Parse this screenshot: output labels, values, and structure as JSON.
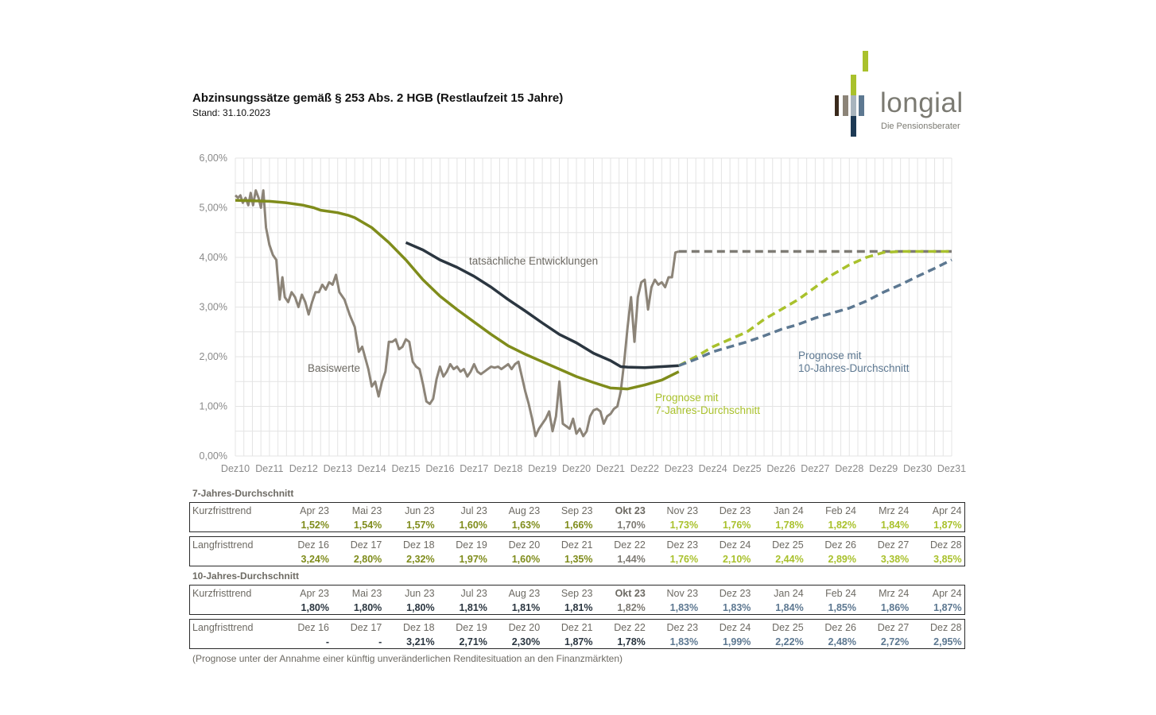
{
  "header": {
    "title": "Abzinsungssätze gemäß § 253 Abs. 2 HGB (Restlaufzeit 15 Jahre)",
    "subtitle": "Stand: 31.10.2023"
  },
  "logo": {
    "word": "longial",
    "tagline": "Die Pensionsberater"
  },
  "colors": {
    "basis": "#8c8478",
    "actual": "#2b3640",
    "avg7": "#7f8c1b",
    "prog7": "#a9c12c",
    "prog10": "#5d7891",
    "grid": "#e4e4e4",
    "label": "#6d6a63",
    "future_gray": "#7e7b74"
  },
  "chart_data": {
    "type": "line",
    "ylim": [
      0,
      6
    ],
    "xlim": [
      0,
      21
    ],
    "yticks": [
      "0,00%",
      "1,00%",
      "2,00%",
      "3,00%",
      "4,00%",
      "5,00%",
      "6,00%"
    ],
    "xticks": [
      "Dez10",
      "Dez11",
      "Dez12",
      "Dez13",
      "Dez14",
      "Dez15",
      "Dez16",
      "Dez17",
      "Dez18",
      "Dez19",
      "Dez20",
      "Dez21",
      "Dez22",
      "Dez23",
      "Dez24",
      "Dez25",
      "Dez26",
      "Dez27",
      "Dez28",
      "Dez29",
      "Dez30",
      "Dez31"
    ],
    "annotations": {
      "basis": "Basiswerte",
      "actual": "tatsächliche Entwicklungen",
      "prog7": [
        "Prognose mit",
        "7-Jahres-Durchschnitt"
      ],
      "prog10": [
        "Prognose mit",
        "10-Jahres-Durchschnitt"
      ]
    },
    "series": [
      {
        "key": "basis",
        "style": "solid",
        "points": [
          [
            0,
            5.25
          ],
          [
            0.08,
            5.2
          ],
          [
            0.15,
            5.25
          ],
          [
            0.22,
            5.1
          ],
          [
            0.3,
            5.2
          ],
          [
            0.38,
            5.05
          ],
          [
            0.45,
            5.3
          ],
          [
            0.52,
            5.05
          ],
          [
            0.6,
            5.35
          ],
          [
            0.68,
            5.2
          ],
          [
            0.75,
            5.0
          ],
          [
            0.82,
            5.35
          ],
          [
            0.9,
            4.6
          ],
          [
            1.0,
            4.25
          ],
          [
            1.1,
            4.05
          ],
          [
            1.2,
            3.95
          ],
          [
            1.3,
            3.15
          ],
          [
            1.38,
            3.6
          ],
          [
            1.45,
            3.2
          ],
          [
            1.55,
            3.1
          ],
          [
            1.65,
            3.3
          ],
          [
            1.75,
            3.2
          ],
          [
            1.85,
            3.0
          ],
          [
            1.95,
            3.25
          ],
          [
            2.05,
            3.1
          ],
          [
            2.15,
            2.85
          ],
          [
            2.25,
            3.1
          ],
          [
            2.35,
            3.3
          ],
          [
            2.45,
            3.3
          ],
          [
            2.55,
            3.45
          ],
          [
            2.65,
            3.35
          ],
          [
            2.75,
            3.5
          ],
          [
            2.85,
            3.45
          ],
          [
            2.95,
            3.65
          ],
          [
            3.05,
            3.3
          ],
          [
            3.2,
            3.15
          ],
          [
            3.35,
            2.85
          ],
          [
            3.5,
            2.6
          ],
          [
            3.62,
            2.1
          ],
          [
            3.72,
            2.2
          ],
          [
            3.8,
            2.0
          ],
          [
            3.9,
            1.75
          ],
          [
            4.0,
            1.4
          ],
          [
            4.1,
            1.5
          ],
          [
            4.2,
            1.2
          ],
          [
            4.3,
            1.5
          ],
          [
            4.4,
            1.7
          ],
          [
            4.5,
            2.3
          ],
          [
            4.6,
            2.3
          ],
          [
            4.7,
            2.35
          ],
          [
            4.8,
            2.15
          ],
          [
            4.9,
            2.2
          ],
          [
            5.0,
            2.35
          ],
          [
            5.1,
            2.3
          ],
          [
            5.2,
            1.9
          ],
          [
            5.3,
            1.8
          ],
          [
            5.4,
            1.75
          ],
          [
            5.5,
            1.45
          ],
          [
            5.6,
            1.1
          ],
          [
            5.7,
            1.05
          ],
          [
            5.8,
            1.15
          ],
          [
            5.9,
            1.55
          ],
          [
            6.0,
            1.8
          ],
          [
            6.1,
            1.6
          ],
          [
            6.2,
            1.7
          ],
          [
            6.3,
            1.85
          ],
          [
            6.4,
            1.75
          ],
          [
            6.5,
            1.8
          ],
          [
            6.6,
            1.7
          ],
          [
            6.7,
            1.75
          ],
          [
            6.8,
            1.6
          ],
          [
            6.9,
            1.7
          ],
          [
            7.0,
            1.85
          ],
          [
            7.1,
            1.7
          ],
          [
            7.2,
            1.65
          ],
          [
            7.3,
            1.7
          ],
          [
            7.4,
            1.75
          ],
          [
            7.5,
            1.8
          ],
          [
            7.6,
            1.78
          ],
          [
            7.7,
            1.8
          ],
          [
            7.8,
            1.75
          ],
          [
            7.9,
            1.8
          ],
          [
            8.0,
            1.85
          ],
          [
            8.1,
            1.75
          ],
          [
            8.2,
            1.85
          ],
          [
            8.3,
            1.9
          ],
          [
            8.4,
            1.6
          ],
          [
            8.5,
            1.3
          ],
          [
            8.6,
            1.05
          ],
          [
            8.7,
            0.75
          ],
          [
            8.8,
            0.4
          ],
          [
            8.9,
            0.55
          ],
          [
            9.0,
            0.65
          ],
          [
            9.1,
            0.75
          ],
          [
            9.2,
            0.9
          ],
          [
            9.3,
            0.5
          ],
          [
            9.4,
            0.8
          ],
          [
            9.5,
            1.5
          ],
          [
            9.6,
            0.65
          ],
          [
            9.7,
            0.6
          ],
          [
            9.8,
            0.55
          ],
          [
            9.9,
            0.75
          ],
          [
            10.0,
            0.45
          ],
          [
            10.1,
            0.55
          ],
          [
            10.2,
            0.4
          ],
          [
            10.3,
            0.5
          ],
          [
            10.4,
            0.8
          ],
          [
            10.5,
            0.92
          ],
          [
            10.6,
            0.95
          ],
          [
            10.7,
            0.9
          ],
          [
            10.8,
            0.65
          ],
          [
            10.9,
            0.8
          ],
          [
            11.0,
            0.85
          ],
          [
            11.1,
            0.95
          ],
          [
            11.2,
            1.0
          ],
          [
            11.3,
            1.3
          ],
          [
            11.4,
            1.9
          ],
          [
            11.5,
            2.6
          ],
          [
            11.6,
            3.2
          ],
          [
            11.7,
            2.3
          ],
          [
            11.8,
            3.2
          ],
          [
            11.9,
            3.5
          ],
          [
            12.0,
            3.55
          ],
          [
            12.1,
            2.95
          ],
          [
            12.2,
            3.4
          ],
          [
            12.3,
            3.55
          ],
          [
            12.4,
            3.45
          ],
          [
            12.5,
            3.5
          ],
          [
            12.6,
            3.4
          ],
          [
            12.7,
            3.6
          ],
          [
            12.8,
            3.6
          ],
          [
            12.9,
            4.1
          ],
          [
            13.0,
            4.12
          ]
        ]
      },
      {
        "key": "future_gray",
        "style": "dashed",
        "points": [
          [
            13.0,
            4.12
          ],
          [
            21.0,
            4.12
          ]
        ]
      },
      {
        "key": "avg7",
        "style": "solid",
        "points": [
          [
            0,
            5.15
          ],
          [
            1,
            5.13
          ],
          [
            1.5,
            5.1
          ],
          [
            2,
            5.05
          ],
          [
            2.3,
            5.0
          ],
          [
            2.5,
            4.95
          ],
          [
            3,
            4.9
          ],
          [
            3.3,
            4.85
          ],
          [
            3.5,
            4.8
          ],
          [
            4,
            4.6
          ],
          [
            4.5,
            4.3
          ],
          [
            5,
            3.95
          ],
          [
            5.5,
            3.55
          ],
          [
            6,
            3.22
          ],
          [
            6.5,
            2.95
          ],
          [
            7,
            2.7
          ],
          [
            7.5,
            2.45
          ],
          [
            8,
            2.22
          ],
          [
            8.5,
            2.05
          ],
          [
            9,
            1.9
          ],
          [
            9.5,
            1.75
          ],
          [
            10,
            1.6
          ],
          [
            10.5,
            1.48
          ],
          [
            11,
            1.37
          ],
          [
            11.5,
            1.35
          ],
          [
            12,
            1.43
          ],
          [
            12.5,
            1.53
          ],
          [
            13,
            1.7
          ]
        ]
      },
      {
        "key": "actual",
        "style": "solid",
        "points": [
          [
            5,
            4.3
          ],
          [
            5.5,
            4.15
          ],
          [
            6,
            3.95
          ],
          [
            6.5,
            3.8
          ],
          [
            7,
            3.62
          ],
          [
            7.5,
            3.4
          ],
          [
            8,
            3.15
          ],
          [
            8.5,
            2.92
          ],
          [
            9,
            2.68
          ],
          [
            9.5,
            2.45
          ],
          [
            10,
            2.28
          ],
          [
            10.5,
            2.07
          ],
          [
            11,
            1.92
          ],
          [
            11.3,
            1.8
          ],
          [
            11.5,
            1.79
          ],
          [
            12,
            1.78
          ],
          [
            12.5,
            1.8
          ],
          [
            13,
            1.82
          ]
        ]
      },
      {
        "key": "prog7",
        "style": "dashed",
        "points": [
          [
            13,
            1.82
          ],
          [
            13.5,
            2.0
          ],
          [
            14,
            2.2
          ],
          [
            14.5,
            2.35
          ],
          [
            15,
            2.5
          ],
          [
            15.5,
            2.75
          ],
          [
            16,
            2.95
          ],
          [
            16.5,
            3.15
          ],
          [
            17,
            3.4
          ],
          [
            17.5,
            3.65
          ],
          [
            18,
            3.85
          ],
          [
            18.5,
            4.0
          ],
          [
            19,
            4.1
          ],
          [
            19.5,
            4.12
          ],
          [
            20,
            4.12
          ],
          [
            21,
            4.12
          ]
        ]
      },
      {
        "key": "prog10",
        "style": "dashed",
        "points": [
          [
            13,
            1.82
          ],
          [
            13.5,
            1.95
          ],
          [
            14,
            2.1
          ],
          [
            14.5,
            2.2
          ],
          [
            15,
            2.3
          ],
          [
            15.5,
            2.42
          ],
          [
            16,
            2.55
          ],
          [
            16.5,
            2.65
          ],
          [
            17,
            2.78
          ],
          [
            17.5,
            2.88
          ],
          [
            18,
            2.98
          ],
          [
            18.5,
            3.12
          ],
          [
            19,
            3.3
          ],
          [
            19.5,
            3.45
          ],
          [
            20,
            3.62
          ],
          [
            20.5,
            3.78
          ],
          [
            21,
            3.95
          ]
        ]
      }
    ]
  },
  "tables": {
    "avg7_title": "7-Jahres-Durchschnitt",
    "avg10_title": "10-Jahres-Durchschnitt",
    "avg7_short": {
      "label": "Kurzfristtrend",
      "headers": [
        "Apr 23",
        "Mai 23",
        "Jun 23",
        "Jul 23",
        "Aug 23",
        "Sep 23",
        "Okt 23",
        "Nov 23",
        "Dez 23",
        "Jan 24",
        "Feb 24",
        "Mrz 24",
        "Apr 24"
      ],
      "values": [
        "1,52%",
        "1,54%",
        "1,57%",
        "1,60%",
        "1,63%",
        "1,66%",
        "1,70%",
        "1,73%",
        "1,76%",
        "1,78%",
        "1,82%",
        "1,84%",
        "1,87%"
      ]
    },
    "avg7_long": {
      "label": "Langfristtrend",
      "headers": [
        "Dez 16",
        "Dez 17",
        "Dez 18",
        "Dez 19",
        "Dez 20",
        "Dez 21",
        "Dez 22",
        "Dez 23",
        "Dez 24",
        "Dez 25",
        "Dez 26",
        "Dez 27",
        "Dez 28"
      ],
      "values": [
        "3,24%",
        "2,80%",
        "2,32%",
        "1,97%",
        "1,60%",
        "1,35%",
        "1,44%",
        "1,76%",
        "2,10%",
        "2,44%",
        "2,89%",
        "3,38%",
        "3,85%"
      ]
    },
    "avg10_short": {
      "label": "Kurzfristtrend",
      "headers": [
        "Apr 23",
        "Mai 23",
        "Jun 23",
        "Jul 23",
        "Aug 23",
        "Sep 23",
        "Okt 23",
        "Nov 23",
        "Dez 23",
        "Jan 24",
        "Feb 24",
        "Mrz 24",
        "Apr 24"
      ],
      "values": [
        "1,80%",
        "1,80%",
        "1,80%",
        "1,81%",
        "1,81%",
        "1,81%",
        "1,82%",
        "1,83%",
        "1,83%",
        "1,84%",
        "1,85%",
        "1,86%",
        "1,87%"
      ]
    },
    "avg10_long": {
      "label": "Langfristtrend",
      "headers": [
        "Dez 16",
        "Dez 17",
        "Dez 18",
        "Dez 19",
        "Dez 20",
        "Dez 21",
        "Dez 22",
        "Dez 23",
        "Dez 24",
        "Dez 25",
        "Dez 26",
        "Dez 27",
        "Dez 28"
      ],
      "values": [
        "-",
        "-",
        "3,21%",
        "2,71%",
        "2,30%",
        "1,87%",
        "1,78%",
        "1,83%",
        "1,99%",
        "2,22%",
        "2,48%",
        "2,72%",
        "2,95%"
      ]
    }
  },
  "footnote": "(Prognose unter der Annahme einer künftig unveränderlichen Renditesituation an den Finanzmärkten)"
}
